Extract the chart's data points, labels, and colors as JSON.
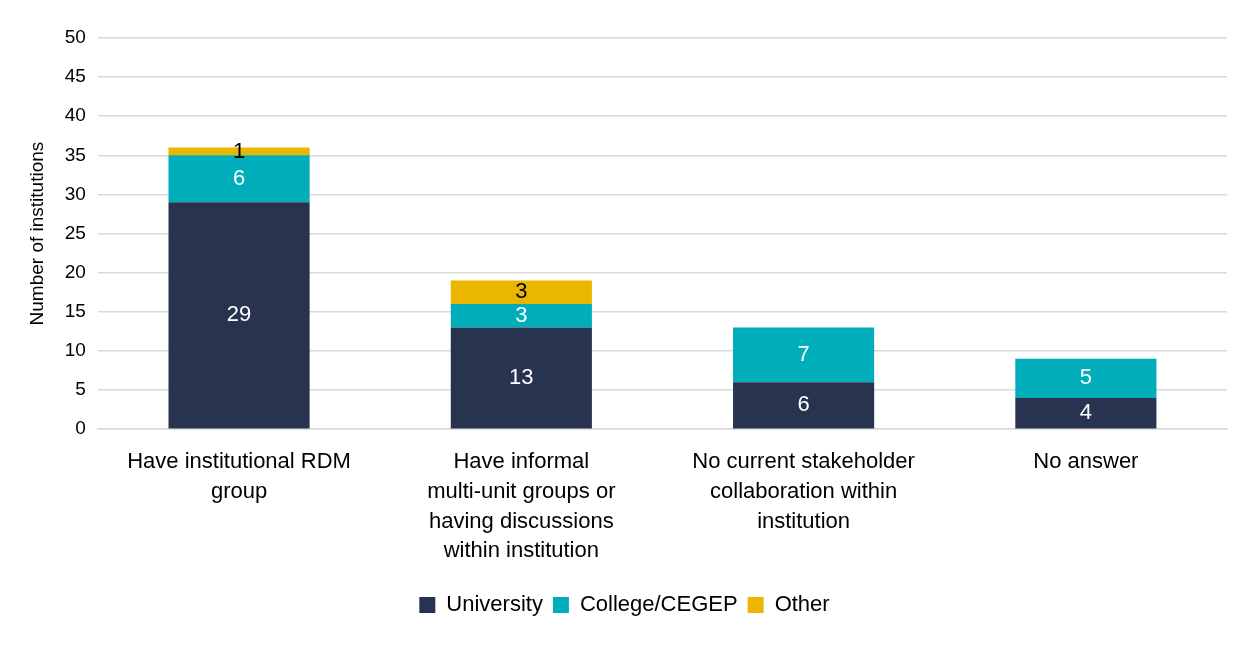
{
  "chart_data": {
    "type": "bar",
    "ylabel": "Number of institutions",
    "categories": [
      "Have institutional RDM group",
      "Have informal multi-unit groups or having discussions within institution",
      "No current stakeholder collaboration within institution",
      "No answer"
    ],
    "series": [
      {
        "name": "University",
        "color": "#283350",
        "values": [
          29,
          13,
          6,
          4
        ]
      },
      {
        "name": "College/CEGEP",
        "color": "#00aebb",
        "values": [
          6,
          3,
          7,
          5
        ]
      },
      {
        "name": "Other",
        "color": "#eab600",
        "values": [
          1,
          3,
          null,
          null
        ]
      }
    ],
    "stacked": true,
    "ylim": [
      0,
      50
    ],
    "yticks": [
      0,
      5,
      10,
      15,
      20,
      25,
      30,
      35,
      40,
      45,
      50
    ],
    "grid": "y",
    "legend": "bottom",
    "data_labels": true
  }
}
